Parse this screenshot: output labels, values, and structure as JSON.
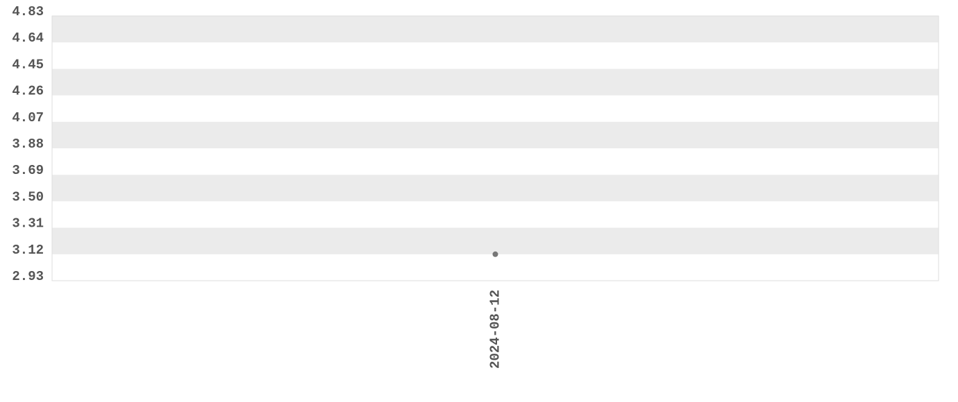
{
  "chart_data": {
    "type": "line",
    "categories": [
      "2024-08-12"
    ],
    "series": [
      {
        "values": [
          3.12
        ],
        "color": "#777777"
      }
    ],
    "ylim": [
      2.93,
      4.83
    ],
    "yticks": [
      2.93,
      3.12,
      3.31,
      {
        "value": 3.5,
        "label": "3.50"
      },
      3.69,
      3.88,
      4.07,
      4.26,
      4.45,
      4.64,
      4.83
    ],
    "grid": true,
    "band_color": "#ebebeb"
  }
}
